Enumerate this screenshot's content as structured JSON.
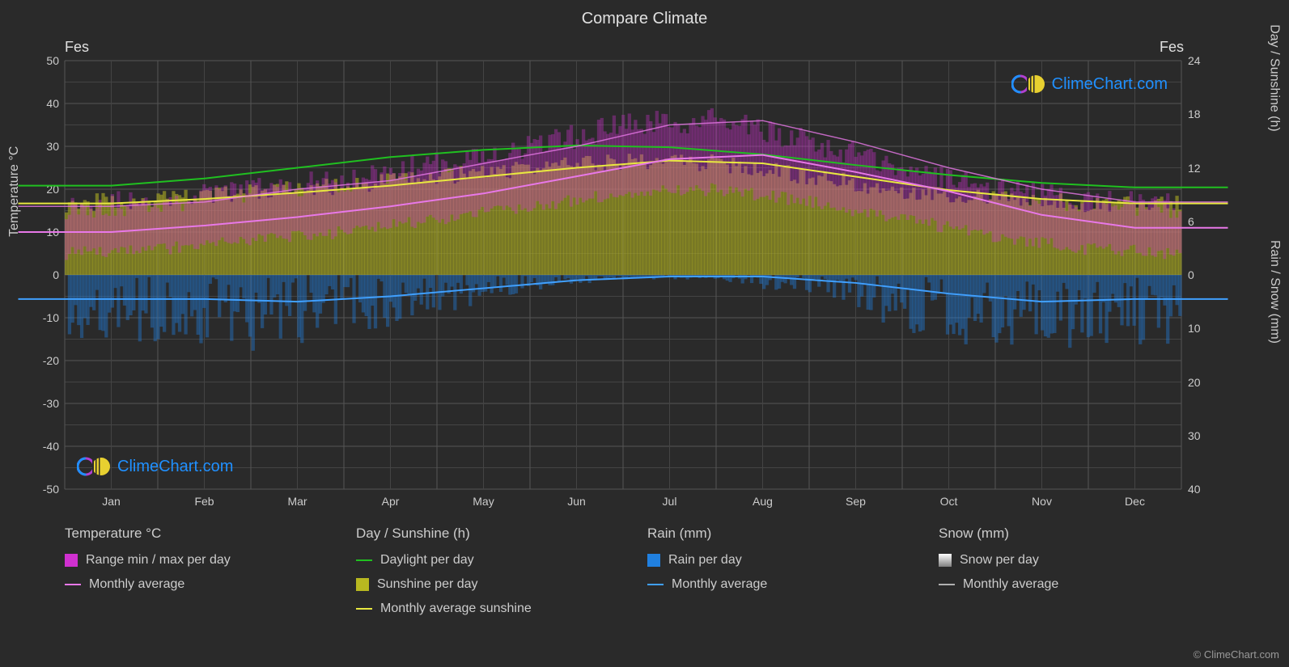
{
  "title": "Compare Climate",
  "city_left": "Fes",
  "city_right": "Fes",
  "watermark": "ClimeChart.com",
  "copyright": "© ClimeChart.com",
  "y_left": {
    "title": "Temperature °C",
    "min": -50,
    "max": 50,
    "ticks": [
      -50,
      -40,
      -30,
      -20,
      -10,
      0,
      10,
      20,
      30,
      40,
      50
    ]
  },
  "y_right_top": {
    "title": "Day / Sunshine (h)",
    "ticks": [
      0,
      6,
      12,
      18,
      24
    ]
  },
  "y_right_bottom": {
    "title": "Rain / Snow (mm)",
    "ticks": [
      0,
      10,
      20,
      30,
      40
    ]
  },
  "x": {
    "months": [
      "Jan",
      "Feb",
      "Mar",
      "Apr",
      "May",
      "Jun",
      "Jul",
      "Aug",
      "Sep",
      "Oct",
      "Nov",
      "Dec"
    ]
  },
  "colors": {
    "background": "#2a2a2a",
    "grid": "#555555",
    "grid_minor": "#444444",
    "text": "#cccccc",
    "temp_range": "#d030d0",
    "temp_avg": "#e878e8",
    "daylight": "#20c020",
    "sunshine_fill": "#b8b820",
    "sunshine_avg": "#e8e840",
    "rain_fill": "#2080e0",
    "rain_avg": "#40a0ff",
    "snow_fill": "#d0d0d0",
    "snow_avg": "#b0b0b0",
    "logo_blue": "#2090ff"
  },
  "legend": {
    "temp": {
      "title": "Temperature °C",
      "range": "Range min / max per day",
      "avg": "Monthly average"
    },
    "day": {
      "title": "Day / Sunshine (h)",
      "daylight": "Daylight per day",
      "sunshine": "Sunshine per day",
      "avg": "Monthly average sunshine"
    },
    "rain": {
      "title": "Rain (mm)",
      "perday": "Rain per day",
      "avg": "Monthly average"
    },
    "snow": {
      "title": "Snow (mm)",
      "perday": "Snow per day",
      "avg": "Monthly average"
    }
  },
  "data": {
    "type": "climate-chart",
    "monthly_temp_avg": [
      10,
      11.5,
      13.5,
      16,
      19,
      23,
      27,
      28,
      24,
      19.5,
      14,
      11
    ],
    "monthly_temp_min": [
      5,
      6,
      8,
      10,
      13,
      16,
      19,
      20,
      17,
      13,
      9,
      6
    ],
    "monthly_temp_max": [
      16,
      17,
      20,
      22,
      26,
      30,
      35,
      36,
      31,
      25,
      20,
      17
    ],
    "daylight_hours": [
      10,
      10.8,
      12,
      13.2,
      14,
      14.5,
      14.3,
      13.5,
      12.3,
      11.2,
      10.3,
      9.8
    ],
    "sunshine_hours": [
      8,
      8.5,
      9.2,
      10,
      11,
      12,
      12.8,
      12.5,
      11,
      9.5,
      8.5,
      8
    ],
    "rain_monthly_avg": [
      4.5,
      4.5,
      5,
      4,
      2.5,
      1,
      0.3,
      0.3,
      1.5,
      3.5,
      5,
      4.5
    ],
    "snow_monthly_avg": [
      0,
      0,
      0,
      0,
      0,
      0,
      0,
      0,
      0,
      0,
      0,
      0
    ]
  }
}
